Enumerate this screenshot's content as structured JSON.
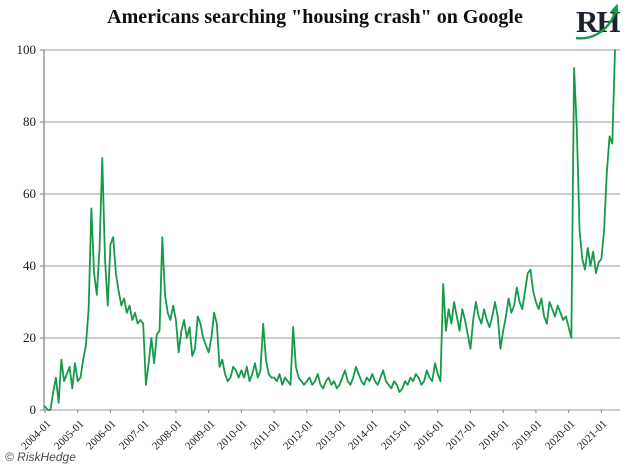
{
  "header": {
    "title": "Americans searching \"housing crash\" on Google"
  },
  "logo": {
    "letters": "RH",
    "letter_color": "#1c2330",
    "arrow_color": "#169a4a"
  },
  "footer": {
    "copyright": "© RiskHedge"
  },
  "chart_data": {
    "type": "line",
    "title": "Americans searching \"housing crash\" on Google",
    "series_name": "Google search interest: housing crash",
    "x_frequency": "monthly",
    "x_start": "2004-01",
    "x_end": "2021-06",
    "x_tick_labels": [
      "2004-01",
      "2005-01",
      "2006-01",
      "2007-01",
      "2008-01",
      "2009-01",
      "2010-01",
      "2011-01",
      "2012-01",
      "2013-01",
      "2014-01",
      "2015-01",
      "2016-01",
      "2017-01",
      "2018-01",
      "2019-01",
      "2020-01",
      "2021-01"
    ],
    "y_ticks": [
      0,
      20,
      40,
      60,
      80,
      100
    ],
    "ylim": [
      0,
      100
    ],
    "grid": "horizontal",
    "grid_color": "#9b9b9b",
    "spine_color": "#808080",
    "line_color": "#159a49",
    "values": [
      1,
      0,
      0,
      5,
      9,
      2,
      14,
      8,
      10,
      12,
      6,
      13,
      8,
      9,
      14,
      18,
      28,
      56,
      38,
      32,
      45,
      70,
      42,
      29,
      46,
      48,
      38,
      33,
      29,
      31,
      27,
      29,
      25,
      27,
      24,
      25,
      24,
      7,
      13,
      20,
      13,
      21,
      22,
      48,
      32,
      27,
      25,
      29,
      25,
      16,
      22,
      25,
      20,
      23,
      15,
      17,
      26,
      24,
      20,
      18,
      16,
      20,
      27,
      24,
      12,
      14,
      10,
      8,
      9,
      12,
      11,
      9,
      11,
      9,
      12,
      8,
      10,
      13,
      9,
      11,
      24,
      14,
      10,
      9,
      9,
      8,
      10,
      7,
      9,
      8,
      7,
      23,
      12,
      9,
      8,
      7,
      8,
      9,
      7,
      8,
      10,
      7,
      6,
      8,
      9,
      7,
      8,
      6,
      7,
      9,
      11,
      8,
      7,
      9,
      12,
      10,
      8,
      7,
      9,
      8,
      10,
      8,
      7,
      9,
      11,
      8,
      7,
      6,
      8,
      7,
      5,
      6,
      8,
      7,
      9,
      8,
      10,
      9,
      7,
      8,
      11,
      9,
      8,
      13,
      10,
      8,
      35,
      22,
      28,
      24,
      30,
      26,
      22,
      28,
      25,
      21,
      17,
      25,
      30,
      26,
      24,
      28,
      25,
      23,
      26,
      30,
      26,
      17,
      22,
      26,
      31,
      27,
      29,
      34,
      30,
      28,
      33,
      38,
      39,
      33,
      30,
      28,
      31,
      26,
      24,
      30,
      28,
      26,
      29,
      27,
      25,
      26,
      23,
      20,
      95,
      78,
      50,
      42,
      39,
      45,
      40,
      44,
      38,
      41,
      42,
      50,
      66,
      76,
      74,
      100
    ]
  }
}
